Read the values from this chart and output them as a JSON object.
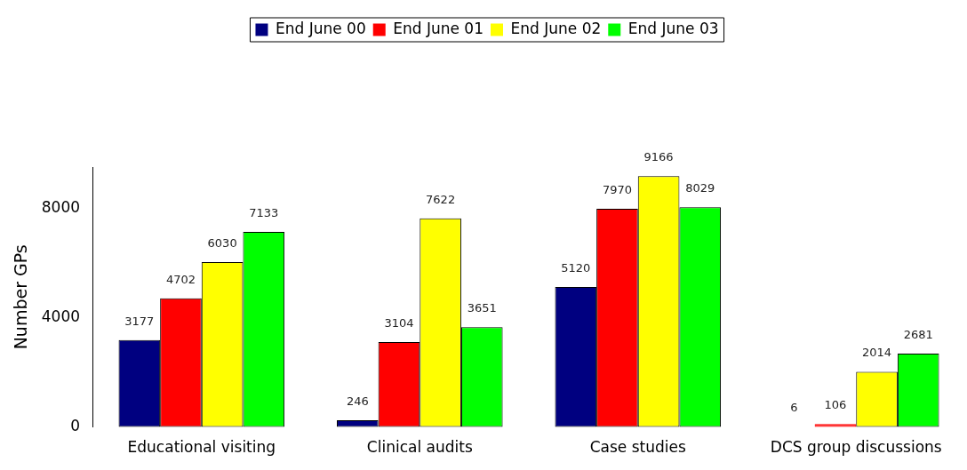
{
  "chart_data": {
    "type": "bar",
    "ylabel": "Number GPs",
    "categories": [
      "Educational visiting",
      "Clinical audits",
      "Case studies",
      "DCS group discussions"
    ],
    "series": [
      {
        "name": "End June 00",
        "color": "#000080",
        "values": [
          3177,
          246,
          5120,
          6
        ]
      },
      {
        "name": "End June 01",
        "color": "#ff0000",
        "values": [
          4702,
          3104,
          7970,
          106
        ]
      },
      {
        "name": "End June 02",
        "color": "#ffff00",
        "values": [
          6030,
          7622,
          9166,
          2014
        ]
      },
      {
        "name": "End June 03",
        "color": "#00ff00",
        "values": [
          7133,
          3651,
          8029,
          2681
        ]
      }
    ],
    "ylim": [
      0,
      9500
    ],
    "yticks": [
      0,
      4000,
      8000
    ],
    "grid": false,
    "legend": "top",
    "data_labels": true
  }
}
